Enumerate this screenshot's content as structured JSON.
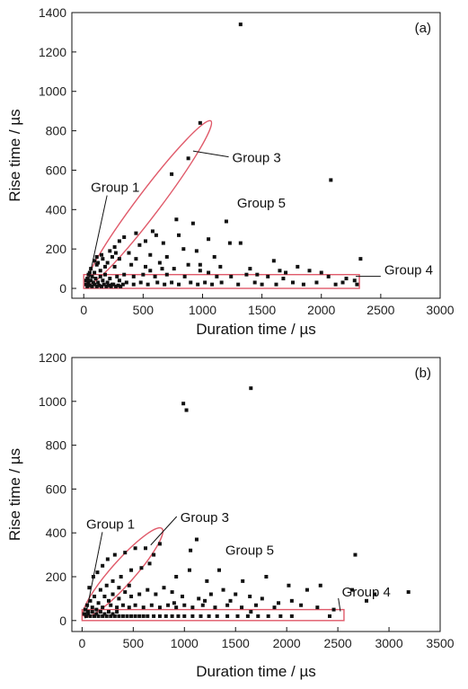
{
  "chart_data": [
    {
      "type": "scatter",
      "panel_label": "(a)",
      "xlabel": "Duration time / µs",
      "ylabel": "Rise time / µs",
      "xlim": [
        -100,
        3000
      ],
      "ylim": [
        -50,
        1400
      ],
      "xticks": [
        0,
        500,
        1000,
        1500,
        2000,
        2500,
        3000
      ],
      "yticks": [
        0,
        200,
        400,
        600,
        800,
        1000,
        1200,
        1400
      ],
      "grid": false,
      "marker_color": "#111111",
      "outline_color": "#e05a6a",
      "annotations": [
        {
          "text": "Group 1",
          "x": 60,
          "y": 490
        },
        {
          "text": "Group 3",
          "x": 1250,
          "y": 640
        },
        {
          "text": "Group 5",
          "x": 1290,
          "y": 410
        },
        {
          "text": "Group 4",
          "x": 2530,
          "y": 70
        }
      ],
      "groups": {
        "group3_ellipse": {
          "start": [
            30,
            20
          ],
          "end": [
            1070,
            850
          ]
        },
        "group4_rect": {
          "x": [
            0,
            2320
          ],
          "y": [
            0,
            70
          ]
        }
      },
      "points": [
        [
          1320,
          1340
        ],
        [
          980,
          840
        ],
        [
          880,
          660
        ],
        [
          740,
          580
        ],
        [
          2080,
          550
        ],
        [
          1200,
          340
        ],
        [
          780,
          350
        ],
        [
          920,
          330
        ],
        [
          580,
          290
        ],
        [
          610,
          270
        ],
        [
          440,
          280
        ],
        [
          800,
          270
        ],
        [
          340,
          260
        ],
        [
          1230,
          230
        ],
        [
          1320,
          230
        ],
        [
          1050,
          250
        ],
        [
          300,
          240
        ],
        [
          470,
          220
        ],
        [
          520,
          240
        ],
        [
          670,
          230
        ],
        [
          260,
          210
        ],
        [
          840,
          200
        ],
        [
          950,
          190
        ],
        [
          1100,
          160
        ],
        [
          220,
          190
        ],
        [
          380,
          180
        ],
        [
          560,
          170
        ],
        [
          700,
          160
        ],
        [
          160,
          150
        ],
        [
          300,
          150
        ],
        [
          440,
          150
        ],
        [
          1600,
          140
        ],
        [
          2330,
          150
        ],
        [
          640,
          130
        ],
        [
          880,
          120
        ],
        [
          1800,
          110
        ],
        [
          120,
          130
        ],
        [
          260,
          110
        ],
        [
          400,
          120
        ],
        [
          520,
          110
        ],
        [
          760,
          100
        ],
        [
          980,
          90
        ],
        [
          1650,
          90
        ],
        [
          1900,
          90
        ],
        [
          2000,
          80
        ],
        [
          2060,
          60
        ],
        [
          1370,
          70
        ],
        [
          1550,
          60
        ],
        [
          1680,
          50
        ],
        [
          2210,
          50
        ],
        [
          2280,
          40
        ],
        [
          1240,
          60
        ],
        [
          1120,
          60
        ],
        [
          850,
          60
        ],
        [
          700,
          70
        ],
        [
          600,
          60
        ],
        [
          500,
          70
        ],
        [
          420,
          60
        ],
        [
          340,
          70
        ],
        [
          280,
          60
        ],
        [
          220,
          50
        ],
        [
          180,
          70
        ],
        [
          140,
          60
        ],
        [
          100,
          50
        ],
        [
          60,
          40
        ],
        [
          40,
          30
        ],
        [
          20,
          20
        ],
        [
          80,
          30
        ],
        [
          120,
          30
        ],
        [
          160,
          40
        ],
        [
          200,
          30
        ],
        [
          240,
          20
        ],
        [
          300,
          40
        ],
        [
          360,
          30
        ],
        [
          420,
          20
        ],
        [
          480,
          30
        ],
        [
          540,
          20
        ],
        [
          620,
          30
        ],
        [
          680,
          20
        ],
        [
          740,
          30
        ],
        [
          800,
          20
        ],
        [
          900,
          30
        ],
        [
          960,
          20
        ],
        [
          1020,
          30
        ],
        [
          1080,
          20
        ],
        [
          1160,
          30
        ],
        [
          1300,
          20
        ],
        [
          1440,
          30
        ],
        [
          1500,
          20
        ],
        [
          1620,
          20
        ],
        [
          1760,
          30
        ],
        [
          1850,
          20
        ],
        [
          1960,
          30
        ],
        [
          2120,
          20
        ],
        [
          2180,
          30
        ],
        [
          2300,
          20
        ],
        [
          30,
          10
        ],
        [
          50,
          15
        ],
        [
          70,
          10
        ],
        [
          90,
          20
        ],
        [
          110,
          10
        ],
        [
          130,
          15
        ],
        [
          150,
          10
        ],
        [
          170,
          20
        ],
        [
          190,
          10
        ],
        [
          210,
          15
        ],
        [
          230,
          10
        ],
        [
          250,
          20
        ],
        [
          270,
          10
        ],
        [
          290,
          15
        ],
        [
          310,
          10
        ],
        [
          330,
          20
        ],
        [
          60,
          100
        ],
        [
          90,
          80
        ],
        [
          110,
          120
        ],
        [
          70,
          60
        ],
        [
          140,
          90
        ],
        [
          180,
          110
        ],
        [
          200,
          130
        ],
        [
          240,
          160
        ],
        [
          270,
          180
        ],
        [
          150,
          170
        ],
        [
          110,
          160
        ],
        [
          90,
          140
        ],
        [
          50,
          80
        ],
        [
          30,
          50
        ],
        [
          20,
          40
        ],
        [
          40,
          70
        ],
        [
          980,
          120
        ],
        [
          1150,
          110
        ],
        [
          1400,
          100
        ],
        [
          1460,
          70
        ],
        [
          1700,
          80
        ],
        [
          1050,
          80
        ],
        [
          560,
          90
        ],
        [
          660,
          100
        ]
      ]
    },
    {
      "type": "scatter",
      "panel_label": "(b)",
      "xlabel": "Duration time / µs",
      "ylabel": "Rise time / µs",
      "xlim": [
        -100,
        3500
      ],
      "ylim": [
        -50,
        1200
      ],
      "xticks": [
        0,
        500,
        1000,
        1500,
        2000,
        2500,
        3000,
        3500
      ],
      "yticks": [
        0,
        200,
        400,
        600,
        800,
        1000,
        1200
      ],
      "grid": false,
      "marker_color": "#111111",
      "outline_color": "#e05a6a",
      "annotations": [
        {
          "text": "Group 1",
          "x": 40,
          "y": 420
        },
        {
          "text": "Group 3",
          "x": 960,
          "y": 450
        },
        {
          "text": "Group 5",
          "x": 1400,
          "y": 300
        },
        {
          "text": "Group 4",
          "x": 2540,
          "y": 110
        }
      ],
      "groups": {
        "group3_ellipse": {
          "start": [
            20,
            20
          ],
          "end": [
            780,
            420
          ]
        },
        "group4_rect": {
          "x": [
            0,
            2560
          ],
          "y": [
            0,
            50
          ]
        }
      },
      "points": [
        [
          1650,
          1060
        ],
        [
          990,
          990
        ],
        [
          1020,
          960
        ],
        [
          2670,
          300
        ],
        [
          760,
          350
        ],
        [
          1120,
          370
        ],
        [
          1060,
          320
        ],
        [
          1050,
          230
        ],
        [
          1340,
          230
        ],
        [
          1570,
          180
        ],
        [
          920,
          200
        ],
        [
          1220,
          180
        ],
        [
          660,
          260
        ],
        [
          580,
          240
        ],
        [
          480,
          230
        ],
        [
          380,
          200
        ],
        [
          300,
          180
        ],
        [
          240,
          160
        ],
        [
          180,
          140
        ],
        [
          120,
          110
        ],
        [
          80,
          90
        ],
        [
          50,
          70
        ],
        [
          30,
          50
        ],
        [
          20,
          30
        ],
        [
          3190,
          130
        ],
        [
          2860,
          120
        ],
        [
          1800,
          200
        ],
        [
          2020,
          160
        ],
        [
          2200,
          140
        ],
        [
          2330,
          160
        ],
        [
          2640,
          140
        ],
        [
          2780,
          90
        ],
        [
          2050,
          90
        ],
        [
          1920,
          80
        ],
        [
          1760,
          100
        ],
        [
          1640,
          110
        ],
        [
          1500,
          120
        ],
        [
          1380,
          140
        ],
        [
          1260,
          120
        ],
        [
          1140,
          100
        ],
        [
          980,
          110
        ],
        [
          880,
          130
        ],
        [
          800,
          150
        ],
        [
          720,
          120
        ],
        [
          640,
          140
        ],
        [
          560,
          120
        ],
        [
          480,
          110
        ],
        [
          420,
          130
        ],
        [
          360,
          100
        ],
        [
          300,
          120
        ],
        [
          260,
          90
        ],
        [
          220,
          110
        ],
        [
          160,
          80
        ],
        [
          100,
          60
        ],
        [
          60,
          40
        ],
        [
          140,
          50
        ],
        [
          200,
          60
        ],
        [
          280,
          70
        ],
        [
          340,
          60
        ],
        [
          400,
          70
        ],
        [
          460,
          60
        ],
        [
          520,
          70
        ],
        [
          600,
          60
        ],
        [
          680,
          70
        ],
        [
          760,
          60
        ],
        [
          840,
          70
        ],
        [
          920,
          60
        ],
        [
          1000,
          70
        ],
        [
          1080,
          60
        ],
        [
          1180,
          70
        ],
        [
          1300,
          60
        ],
        [
          1420,
          70
        ],
        [
          1560,
          60
        ],
        [
          1700,
          70
        ],
        [
          1880,
          60
        ],
        [
          2140,
          70
        ],
        [
          2300,
          60
        ],
        [
          2460,
          50
        ],
        [
          1940,
          20
        ],
        [
          2420,
          20
        ],
        [
          40,
          20
        ],
        [
          80,
          20
        ],
        [
          120,
          20
        ],
        [
          160,
          20
        ],
        [
          200,
          20
        ],
        [
          240,
          20
        ],
        [
          280,
          20
        ],
        [
          320,
          20
        ],
        [
          360,
          20
        ],
        [
          400,
          20
        ],
        [
          440,
          20
        ],
        [
          480,
          20
        ],
        [
          520,
          20
        ],
        [
          560,
          20
        ],
        [
          600,
          20
        ],
        [
          640,
          20
        ],
        [
          700,
          20
        ],
        [
          760,
          20
        ],
        [
          820,
          20
        ],
        [
          880,
          20
        ],
        [
          940,
          20
        ],
        [
          1000,
          20
        ],
        [
          1080,
          20
        ],
        [
          1160,
          20
        ],
        [
          1240,
          20
        ],
        [
          1320,
          20
        ],
        [
          1420,
          20
        ],
        [
          1520,
          20
        ],
        [
          1620,
          20
        ],
        [
          1720,
          20
        ],
        [
          1820,
          20
        ],
        [
          2050,
          20
        ],
        [
          60,
          30
        ],
        [
          100,
          40
        ],
        [
          140,
          30
        ],
        [
          180,
          40
        ],
        [
          220,
          30
        ],
        [
          260,
          40
        ],
        [
          300,
          30
        ],
        [
          340,
          40
        ],
        [
          70,
          150
        ],
        [
          110,
          200
        ],
        [
          150,
          220
        ],
        [
          200,
          250
        ],
        [
          250,
          280
        ],
        [
          320,
          300
        ],
        [
          420,
          310
        ],
        [
          520,
          330
        ],
        [
          620,
          330
        ],
        [
          700,
          300
        ],
        [
          460,
          160
        ],
        [
          360,
          150
        ],
        [
          900,
          80
        ],
        [
          1200,
          90
        ],
        [
          1450,
          90
        ],
        [
          1650,
          40
        ]
      ]
    }
  ]
}
